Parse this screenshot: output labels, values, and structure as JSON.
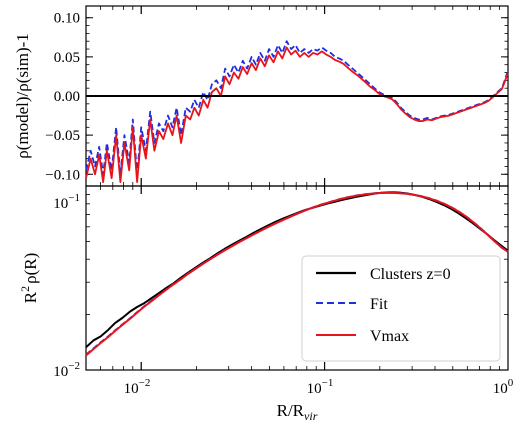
{
  "chart_data": [
    {
      "type": "line",
      "panel": "top",
      "ylabel": "ρ(model)/ρ(sim)-1",
      "xscale": "log",
      "xlim": [
        0.005,
        1.0
      ],
      "ylim": [
        -0.115,
        0.115
      ],
      "yticks": [
        0.1,
        0.05,
        0.0,
        -0.05,
        -0.1
      ],
      "ytick_labels": [
        "0.10",
        "0.05",
        "0.00",
        "−0.05",
        "−0.10"
      ],
      "hline": 0.0,
      "series": [
        {
          "name": "Fit",
          "color": "#1f2fe0",
          "dash": "dashed",
          "x": [
            0.005,
            0.0053,
            0.0056,
            0.0059,
            0.0062,
            0.0065,
            0.0069,
            0.0073,
            0.0077,
            0.0081,
            0.0086,
            0.009,
            0.0095,
            0.01,
            0.0106,
            0.0112,
            0.0118,
            0.0125,
            0.0132,
            0.014,
            0.0148,
            0.0156,
            0.0165,
            0.0175,
            0.0185,
            0.0195,
            0.0206,
            0.0218,
            0.023,
            0.0243,
            0.0257,
            0.0272,
            0.0287,
            0.0303,
            0.032,
            0.0339,
            0.0358,
            0.0378,
            0.04,
            0.0422,
            0.0446,
            0.0472,
            0.0498,
            0.0527,
            0.0557,
            0.0588,
            0.0621,
            0.0657,
            0.0694,
            0.0733,
            0.0775,
            0.0819,
            0.0865,
            0.0914,
            0.0966,
            0.102,
            0.108,
            0.114,
            0.12,
            0.127,
            0.134,
            0.142,
            0.15,
            0.159,
            0.168,
            0.177,
            0.187,
            0.198,
            0.209,
            0.221,
            0.233,
            0.247,
            0.261,
            0.275,
            0.291,
            0.308,
            0.325,
            0.343,
            0.363,
            0.384,
            0.405,
            0.428,
            0.453,
            0.478,
            0.505,
            0.534,
            0.564,
            0.596,
            0.63,
            0.666,
            0.703,
            0.743,
            0.785,
            0.83,
            0.877,
            0.926,
            0.96,
            0.985,
            1.0
          ],
          "y": [
            -0.095,
            -0.07,
            -0.09,
            -0.065,
            -0.1,
            -0.06,
            -0.095,
            -0.04,
            -0.1,
            -0.05,
            -0.085,
            -0.03,
            -0.1,
            -0.04,
            -0.07,
            -0.02,
            -0.06,
            -0.035,
            -0.045,
            -0.025,
            -0.04,
            -0.015,
            -0.05,
            -0.015,
            -0.02,
            -0.005,
            -0.015,
            0.005,
            -0.005,
            0.015,
            0.02,
            0.01,
            0.035,
            0.025,
            0.04,
            0.03,
            0.045,
            0.035,
            0.05,
            0.04,
            0.055,
            0.045,
            0.06,
            0.05,
            0.065,
            0.055,
            0.07,
            0.06,
            0.065,
            0.055,
            0.06,
            0.055,
            0.06,
            0.058,
            0.062,
            0.058,
            0.055,
            0.05,
            0.048,
            0.045,
            0.04,
            0.035,
            0.03,
            0.025,
            0.02,
            0.015,
            0.01,
            0.005,
            0.002,
            0.0,
            -0.002,
            -0.008,
            -0.015,
            -0.02,
            -0.025,
            -0.028,
            -0.03,
            -0.03,
            -0.028,
            -0.03,
            -0.028,
            -0.026,
            -0.025,
            -0.024,
            -0.022,
            -0.02,
            -0.018,
            -0.016,
            -0.014,
            -0.012,
            -0.01,
            -0.008,
            -0.005,
            0.0,
            0.005,
            0.01,
            0.02,
            0.028,
            0.03
          ]
        },
        {
          "name": "Vmax",
          "color": "#e8141c",
          "dash": "solid",
          "x": [
            0.005,
            0.0053,
            0.0056,
            0.0059,
            0.0062,
            0.0065,
            0.0069,
            0.0073,
            0.0077,
            0.0081,
            0.0086,
            0.009,
            0.0095,
            0.01,
            0.0106,
            0.0112,
            0.0118,
            0.0125,
            0.0132,
            0.014,
            0.0148,
            0.0156,
            0.0165,
            0.0175,
            0.0185,
            0.0195,
            0.0206,
            0.0218,
            0.023,
            0.0243,
            0.0257,
            0.0272,
            0.0287,
            0.0303,
            0.032,
            0.0339,
            0.0358,
            0.0378,
            0.04,
            0.0422,
            0.0446,
            0.0472,
            0.0498,
            0.0527,
            0.0557,
            0.0588,
            0.0621,
            0.0657,
            0.0694,
            0.0733,
            0.0775,
            0.0819,
            0.0865,
            0.0914,
            0.0966,
            0.102,
            0.108,
            0.114,
            0.12,
            0.127,
            0.134,
            0.142,
            0.15,
            0.159,
            0.168,
            0.177,
            0.187,
            0.198,
            0.209,
            0.221,
            0.233,
            0.247,
            0.261,
            0.275,
            0.291,
            0.308,
            0.325,
            0.343,
            0.363,
            0.384,
            0.405,
            0.428,
            0.453,
            0.478,
            0.505,
            0.534,
            0.564,
            0.596,
            0.63,
            0.666,
            0.703,
            0.743,
            0.785,
            0.83,
            0.877,
            0.926,
            0.96,
            0.985,
            1.0
          ],
          "y": [
            -0.105,
            -0.08,
            -0.1,
            -0.075,
            -0.11,
            -0.07,
            -0.105,
            -0.05,
            -0.11,
            -0.06,
            -0.095,
            -0.04,
            -0.11,
            -0.05,
            -0.08,
            -0.03,
            -0.07,
            -0.045,
            -0.055,
            -0.035,
            -0.05,
            -0.025,
            -0.06,
            -0.025,
            -0.03,
            -0.015,
            -0.025,
            -0.005,
            -0.015,
            0.005,
            0.01,
            0.0,
            0.025,
            0.015,
            0.03,
            0.022,
            0.037,
            0.028,
            0.042,
            0.033,
            0.048,
            0.038,
            0.052,
            0.043,
            0.057,
            0.048,
            0.062,
            0.053,
            0.058,
            0.05,
            0.055,
            0.05,
            0.055,
            0.053,
            0.057,
            0.053,
            0.05,
            0.046,
            0.044,
            0.041,
            0.036,
            0.031,
            0.027,
            0.022,
            0.017,
            0.012,
            0.008,
            0.003,
            0.0,
            -0.002,
            -0.004,
            -0.01,
            -0.017,
            -0.022,
            -0.027,
            -0.03,
            -0.032,
            -0.032,
            -0.03,
            -0.031,
            -0.029,
            -0.027,
            -0.026,
            -0.025,
            -0.023,
            -0.021,
            -0.019,
            -0.017,
            -0.015,
            -0.013,
            -0.011,
            -0.009,
            -0.006,
            -0.001,
            0.004,
            0.009,
            0.018,
            0.026,
            0.028
          ]
        }
      ]
    },
    {
      "type": "line",
      "panel": "bottom",
      "xlabel": "R/R_vir",
      "ylabel": "R²ρ(R)",
      "xscale": "log",
      "yscale": "log",
      "xlim": [
        0.005,
        1.0
      ],
      "ylim": [
        0.01,
        0.1
      ],
      "xticks": [
        0.01,
        0.1,
        1.0
      ],
      "yticks": [
        0.01,
        0.1
      ],
      "legend_position": "lower right",
      "series": [
        {
          "name": "Clusters z=0",
          "color": "#000000",
          "dash": "solid",
          "x": [
            0.005,
            0.0055,
            0.006,
            0.0066,
            0.0072,
            0.0079,
            0.0087,
            0.0095,
            0.0104,
            0.0114,
            0.0125,
            0.0137,
            0.015,
            0.0165,
            0.018,
            0.0198,
            0.0217,
            0.0238,
            0.026,
            0.0285,
            0.0313,
            0.0343,
            0.0376,
            0.0412,
            0.0451,
            0.0494,
            0.0542,
            0.0594,
            0.0651,
            0.0713,
            0.0781,
            0.0856,
            0.0938,
            0.103,
            0.113,
            0.123,
            0.135,
            0.148,
            0.163,
            0.178,
            0.195,
            0.214,
            0.235,
            0.257,
            0.282,
            0.309,
            0.339,
            0.371,
            0.407,
            0.446,
            0.489,
            0.536,
            0.587,
            0.643,
            0.705,
            0.773,
            0.847,
            0.928,
            1.0
          ],
          "y": [
            0.0133,
            0.0145,
            0.0152,
            0.0165,
            0.018,
            0.0192,
            0.0208,
            0.022,
            0.0231,
            0.0246,
            0.0262,
            0.0279,
            0.0296,
            0.0318,
            0.0338,
            0.036,
            0.0383,
            0.0405,
            0.043,
            0.0455,
            0.048,
            0.0505,
            0.053,
            0.0558,
            0.0585,
            0.0612,
            0.064,
            0.0665,
            0.069,
            0.0715,
            0.074,
            0.076,
            0.078,
            0.0802,
            0.082,
            0.0838,
            0.0855,
            0.0872,
            0.0888,
            0.0902,
            0.0915,
            0.0922,
            0.0925,
            0.092,
            0.091,
            0.0895,
            0.0875,
            0.085,
            0.082,
            0.0788,
            0.0752,
            0.0712,
            0.067,
            0.0628,
            0.0585,
            0.0545,
            0.0505,
            0.047,
            0.0445
          ]
        },
        {
          "name": "Fit",
          "color": "#1f2fe0",
          "dash": "dashed",
          "x": [
            0.005,
            0.0055,
            0.006,
            0.0066,
            0.0072,
            0.0079,
            0.0087,
            0.0095,
            0.0104,
            0.0114,
            0.0125,
            0.0137,
            0.015,
            0.0165,
            0.018,
            0.0198,
            0.0217,
            0.0238,
            0.026,
            0.0285,
            0.0313,
            0.0343,
            0.0376,
            0.0412,
            0.0451,
            0.0494,
            0.0542,
            0.0594,
            0.0651,
            0.0713,
            0.0781,
            0.0856,
            0.0938,
            0.103,
            0.113,
            0.123,
            0.135,
            0.148,
            0.163,
            0.178,
            0.195,
            0.214,
            0.235,
            0.257,
            0.282,
            0.309,
            0.339,
            0.371,
            0.407,
            0.446,
            0.489,
            0.536,
            0.587,
            0.643,
            0.705,
            0.773,
            0.847,
            0.928,
            1.0
          ],
          "y": [
            0.0121,
            0.0131,
            0.0141,
            0.0152,
            0.0164,
            0.0177,
            0.0191,
            0.0206,
            0.0222,
            0.0238,
            0.0256,
            0.0274,
            0.0293,
            0.0313,
            0.0334,
            0.0356,
            0.0378,
            0.0401,
            0.0424,
            0.0448,
            0.0472,
            0.0497,
            0.0522,
            0.0548,
            0.0574,
            0.0601,
            0.0628,
            0.0655,
            0.0682,
            0.0709,
            0.0736,
            0.0762,
            0.0787,
            0.081,
            0.0832,
            0.0852,
            0.087,
            0.0886,
            0.0899,
            0.0909,
            0.0916,
            0.0919,
            0.0919,
            0.0915,
            0.0907,
            0.0895,
            0.0879,
            0.0858,
            0.0833,
            0.0803,
            0.0768,
            0.0729,
            0.0686,
            0.064,
            0.0592,
            0.0545,
            0.05,
            0.0462,
            0.044
          ]
        },
        {
          "name": "Vmax",
          "color": "#e8141c",
          "dash": "solid",
          "x": [
            0.005,
            0.0055,
            0.006,
            0.0066,
            0.0072,
            0.0079,
            0.0087,
            0.0095,
            0.0104,
            0.0114,
            0.0125,
            0.0137,
            0.015,
            0.0165,
            0.018,
            0.0198,
            0.0217,
            0.0238,
            0.026,
            0.0285,
            0.0313,
            0.0343,
            0.0376,
            0.0412,
            0.0451,
            0.0494,
            0.0542,
            0.0594,
            0.0651,
            0.0713,
            0.0781,
            0.0856,
            0.0938,
            0.103,
            0.113,
            0.123,
            0.135,
            0.148,
            0.163,
            0.178,
            0.195,
            0.214,
            0.235,
            0.257,
            0.282,
            0.309,
            0.339,
            0.371,
            0.407,
            0.446,
            0.489,
            0.536,
            0.587,
            0.643,
            0.705,
            0.773,
            0.847,
            0.928,
            1.0
          ],
          "y": [
            0.012,
            0.013,
            0.014,
            0.0151,
            0.0163,
            0.0176,
            0.019,
            0.0205,
            0.0221,
            0.0237,
            0.0255,
            0.0273,
            0.0292,
            0.0312,
            0.0333,
            0.0355,
            0.0377,
            0.04,
            0.0423,
            0.0447,
            0.0471,
            0.0496,
            0.0521,
            0.0547,
            0.0573,
            0.06,
            0.0627,
            0.0654,
            0.0681,
            0.0708,
            0.0735,
            0.0761,
            0.0786,
            0.0809,
            0.0831,
            0.0851,
            0.0869,
            0.0885,
            0.0898,
            0.0908,
            0.0915,
            0.0918,
            0.0918,
            0.0914,
            0.0906,
            0.0894,
            0.0878,
            0.0857,
            0.0832,
            0.0802,
            0.0767,
            0.0728,
            0.0685,
            0.0639,
            0.0591,
            0.0544,
            0.0499,
            0.0461,
            0.0439
          ]
        }
      ]
    }
  ],
  "top_panel": {
    "ylabel": "ρ(model)/ρ(sim)-1",
    "ytick_labels": [
      "0.10",
      "0.05",
      "0.00",
      "−0.05",
      "−0.10"
    ]
  },
  "bottom_panel": {
    "ylabel_base": "R",
    "ylabel_sup": "2",
    "ylabel_rest": "ρ(R)",
    "xlabel_base": "R/R",
    "xlabel_sub": "vir",
    "ytick_base": "10",
    "ytick_top_exp": "−1",
    "ytick_bottom_exp": "−2",
    "xtick_base": "10",
    "xtick_exps": [
      "−2",
      "−1",
      "0"
    ],
    "legend": [
      {
        "label": "Clusters z=0",
        "color": "#000000",
        "dash": "solid"
      },
      {
        "label": "Fit",
        "color": "#1f2fe0",
        "dash": "dashed"
      },
      {
        "label": "Vmax",
        "color": "#e8141c",
        "dash": "solid"
      }
    ]
  }
}
